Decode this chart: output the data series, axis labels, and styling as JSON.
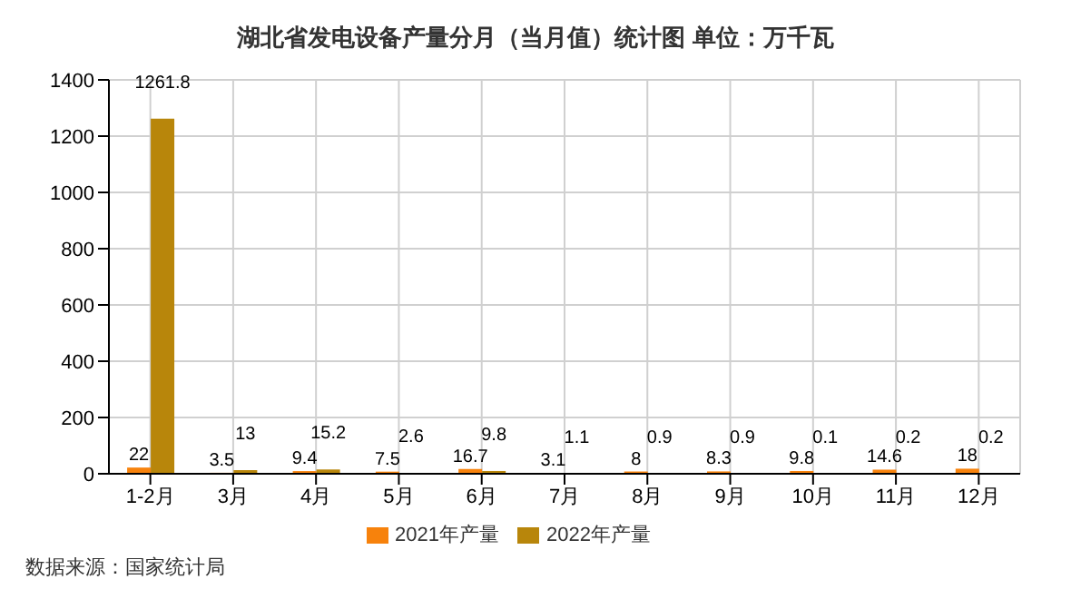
{
  "chart_data": {
    "type": "bar",
    "title": "湖北省发电设备产量分月（当月值）统计图 单位：万千瓦",
    "categories": [
      "1-2月",
      "3月",
      "4月",
      "5月",
      "6月",
      "7月",
      "8月",
      "9月",
      "10月",
      "11月",
      "12月"
    ],
    "series": [
      {
        "name": "2021年产量",
        "color": "#f7820c",
        "values": [
          22,
          3.5,
          9.4,
          7.5,
          16.7,
          3.1,
          8,
          8.3,
          9.8,
          14.6,
          18
        ]
      },
      {
        "name": "2022年产量",
        "color": "#b8860b",
        "values": [
          1261.8,
          13,
          15.2,
          2.6,
          9.8,
          1.1,
          0.9,
          0.9,
          0.1,
          0.2,
          0.2
        ]
      }
    ],
    "ylim": [
      0,
      1400
    ],
    "yticks": [
      0,
      200,
      400,
      600,
      800,
      1000,
      1200,
      1400
    ],
    "grid": true,
    "legend": "bottom",
    "data_labels": true,
    "annotations": [
      "数据来源：国家统计局"
    ]
  }
}
